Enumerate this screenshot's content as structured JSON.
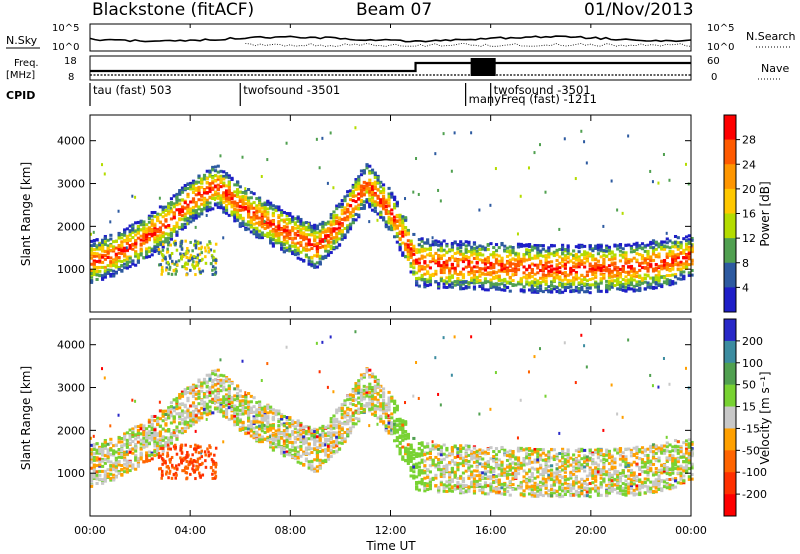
{
  "header": {
    "title": "Blackstone (fitACF)",
    "beam": "Beam 07",
    "date": "01/Nov/2013"
  },
  "summary": {
    "nsky_label": "N.Sky",
    "nsearch_label": "N.Search",
    "freq_label_1": "Freq.",
    "freq_label_2": "[MHz]",
    "nave_label": "Nave",
    "cpid_label": "CPID",
    "nsky_ticks": [
      "10^5",
      "10^0"
    ],
    "nsearch_ticks": [
      "10^5",
      "10^0"
    ],
    "freq_ticks": [
      "18",
      "8"
    ],
    "nave_ticks": [
      "60",
      "0"
    ]
  },
  "cpid_segments": [
    {
      "label": "tau (fast) 503",
      "start": 0.0
    },
    {
      "label": "twofsound -3501",
      "start": 6.0
    },
    {
      "label": "manyFreq (fast) -1211",
      "start": 15.0
    },
    {
      "label": "twofsound -3501",
      "start": 16.0
    }
  ],
  "power_colorbar": {
    "label": "Power [dB]",
    "ticks": [
      "28",
      "24",
      "20",
      "16",
      "12",
      "8",
      "4"
    ],
    "colors": [
      "#ff0000",
      "#ff5a00",
      "#ff9600",
      "#ffc800",
      "#b4dc00",
      "#50a050",
      "#2d5aa0",
      "#1e1ec8"
    ]
  },
  "velocity_colorbar": {
    "label": "Velocity [m s⁻¹]",
    "ticks": [
      "200",
      "100",
      "50",
      "15",
      "-15",
      "-50",
      "-100",
      "-200"
    ],
    "colors": [
      "#2828c8",
      "#3c8ca0",
      "#50a050",
      "#78d232",
      "#c8c8c8",
      "#ffa000",
      "#ff6400",
      "#ff3000",
      "#ff0000"
    ]
  },
  "chart_data": [
    {
      "type": "heatmap",
      "title": "",
      "xlabel": "",
      "ylabel": "Slant Range [km]",
      "xlim": [
        0,
        24
      ],
      "ylim": [
        0,
        4600
      ],
      "x_ticks": [
        "00:00",
        "04:00",
        "08:00",
        "12:00",
        "16:00",
        "20:00",
        "00:00"
      ],
      "y_ticks": [
        1000,
        2000,
        3000,
        4000
      ],
      "colorbar": "Power [dB]",
      "band_center_km": [
        [
          0.0,
          1150
        ],
        [
          1.0,
          1350
        ],
        [
          2.0,
          1650
        ],
        [
          3.0,
          2050
        ],
        [
          4.0,
          2600
        ],
        [
          5.0,
          2950
        ],
        [
          6.0,
          2450
        ],
        [
          7.0,
          2100
        ],
        [
          8.0,
          1800
        ],
        [
          9.0,
          1500
        ],
        [
          10.0,
          2100
        ],
        [
          11.0,
          3000
        ],
        [
          12.0,
          2300
        ],
        [
          13.0,
          1150
        ],
        [
          14.0,
          1100
        ],
        [
          16.0,
          1050
        ],
        [
          18.0,
          1000
        ],
        [
          20.0,
          1000
        ],
        [
          22.0,
          1050
        ],
        [
          23.0,
          1150
        ],
        [
          24.0,
          1300
        ]
      ]
    },
    {
      "type": "heatmap",
      "title": "",
      "xlabel": "Time UT",
      "ylabel": "Slant Range [km]",
      "xlim": [
        0,
        24
      ],
      "ylim": [
        0,
        4600
      ],
      "x_ticks": [
        "00:00",
        "04:00",
        "08:00",
        "12:00",
        "16:00",
        "20:00",
        "00:00"
      ],
      "y_ticks": [
        1000,
        2000,
        3000,
        4000
      ],
      "colorbar": "Velocity [m s⁻¹]",
      "band_center_km": [
        [
          0.0,
          1150
        ],
        [
          1.0,
          1350
        ],
        [
          2.0,
          1650
        ],
        [
          3.0,
          2050
        ],
        [
          4.0,
          2600
        ],
        [
          5.0,
          2950
        ],
        [
          6.0,
          2450
        ],
        [
          7.0,
          2100
        ],
        [
          8.0,
          1800
        ],
        [
          9.0,
          1500
        ],
        [
          10.0,
          2100
        ],
        [
          11.0,
          3000
        ],
        [
          12.0,
          2300
        ],
        [
          13.0,
          1150
        ],
        [
          14.0,
          1100
        ],
        [
          16.0,
          1050
        ],
        [
          18.0,
          1000
        ],
        [
          20.0,
          1000
        ],
        [
          22.0,
          1050
        ],
        [
          23.0,
          1150
        ],
        [
          24.0,
          1300
        ]
      ]
    }
  ],
  "axes": {
    "xlabel": "Time UT",
    "ylabel_top": "Slant Range [km]",
    "ylabel_bottom": "Slant Range [km]"
  }
}
